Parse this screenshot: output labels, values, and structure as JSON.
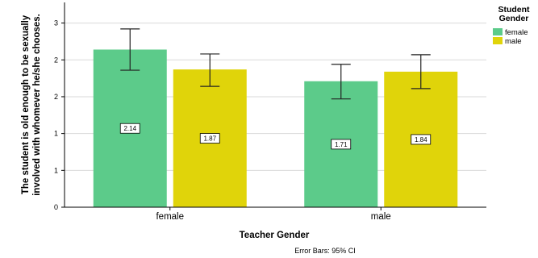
{
  "chart_data": {
    "type": "bar",
    "categories": [
      "female",
      "male"
    ],
    "xlabel": "Teacher Gender",
    "ylabel_lines": [
      "The student is old enough to be sexually",
      "involved with whomever he/she chooses."
    ],
    "y_tick_labels": [
      "0",
      "1",
      "1",
      "2",
      "2",
      "3"
    ],
    "y_tick_values": [
      0,
      0.5,
      1.0,
      1.5,
      2.0,
      2.5
    ],
    "ylim": [
      0,
      2.78
    ],
    "grid": true,
    "legend": {
      "title_lines": [
        "Student",
        "Gender"
      ],
      "placement": "top-right"
    },
    "series": [
      {
        "name": "female",
        "color": "#5ccb8a",
        "values": [
          2.14,
          1.71
        ],
        "labels": [
          "2.14",
          "1.71"
        ],
        "ci_low": [
          1.86,
          1.47
        ],
        "ci_high": [
          2.42,
          1.94
        ]
      },
      {
        "name": "male",
        "color": "#e0d40a",
        "values": [
          1.87,
          1.84
        ],
        "labels": [
          "1.87",
          "1.84"
        ],
        "ci_low": [
          1.64,
          1.61
        ],
        "ci_high": [
          2.08,
          2.07
        ]
      }
    ],
    "footnote": "Error Bars: 95% CI"
  }
}
